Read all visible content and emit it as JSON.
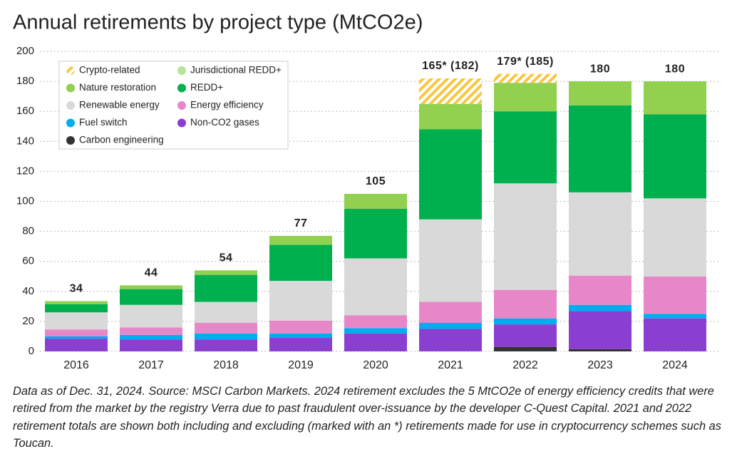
{
  "chart_data": {
    "type": "stacked_bar",
    "title": "Annual retirements by project type (MtCO2e)",
    "categories": [
      "2016",
      "2017",
      "2018",
      "2019",
      "2020",
      "2021",
      "2022",
      "2023",
      "2024"
    ],
    "series": [
      {
        "name": "Carbon engineering",
        "color": "#333333",
        "values": [
          0,
          0,
          0,
          0,
          0,
          0,
          3,
          1.5,
          0
        ]
      },
      {
        "name": "Non-CO2 gases",
        "color": "#8a3fd1",
        "values": [
          8.5,
          8,
          8,
          9,
          12,
          15,
          15,
          25.5,
          22
        ]
      },
      {
        "name": "Fuel switch",
        "color": "#00aeef",
        "values": [
          1.5,
          3,
          4,
          3,
          3.5,
          4,
          4,
          4,
          3
        ]
      },
      {
        "name": "Energy efficiency",
        "color": "#e887c8",
        "values": [
          4.5,
          5,
          7,
          8.5,
          8.5,
          14,
          19,
          19.5,
          25
        ]
      },
      {
        "name": "Renewable energy",
        "color": "#d9d9d9",
        "values": [
          11.5,
          15,
          14,
          26.5,
          38,
          55,
          71,
          55.5,
          52
        ]
      },
      {
        "name": "REDD+",
        "color": "#00b04f",
        "values": [
          5.5,
          10.5,
          18,
          24,
          33,
          60,
          48,
          58,
          56
        ]
      },
      {
        "name": "Nature restoration",
        "color": "#92d050",
        "values": [
          2,
          2.5,
          3,
          6,
          10,
          17,
          19,
          16,
          22
        ]
      },
      {
        "name": "Jurisdictional REDD+",
        "color": "#b8e39a",
        "values": [
          0,
          0,
          0,
          0,
          0,
          0,
          0,
          0,
          0
        ]
      },
      {
        "name": "Crypto-related",
        "color": "#f7c744",
        "hatch": true,
        "values": [
          0,
          0,
          0,
          0,
          0,
          17,
          6,
          0,
          0
        ]
      }
    ],
    "totals": [
      34,
      44,
      54,
      77,
      105,
      "165* (182)",
      "179* (185)",
      180,
      180
    ],
    "ylim": [
      0,
      200
    ],
    "yticks": [
      0,
      20,
      40,
      60,
      80,
      100,
      120,
      140,
      160,
      180,
      200
    ],
    "grid": true,
    "note": "Data as of Dec. 31, 2024. Source: MSCI Carbon Markets. 2024 retirement excludes the 5 MtCO2e of energy efficiency credits that were retired from the market by the registry Verra due to past fraudulent over-issuance by the developer C-Quest Capital. 2021 and 2022 retirement totals are shown both including and excluding (marked with an *) retirements made for use in cryptocurrency schemes such as Toucan."
  }
}
